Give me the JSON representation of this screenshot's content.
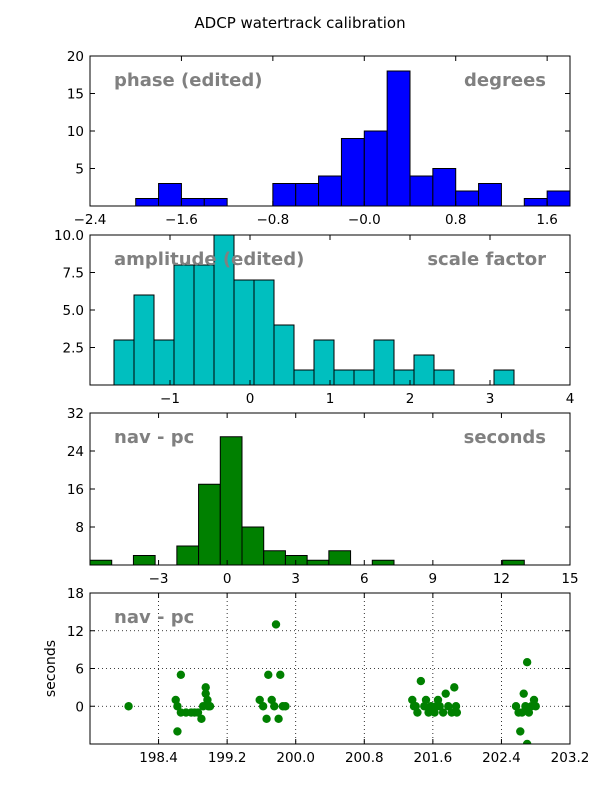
{
  "figure": {
    "title": "ADCP watertrack calibration"
  },
  "chart_data": [
    {
      "type": "bar",
      "subtype": "histogram",
      "color": "#0000ff",
      "bin_width": 0.2,
      "bins_start": [
        -2.0,
        -1.8,
        -1.6,
        -1.4,
        -1.2,
        -1.0,
        -0.8,
        -0.6,
        -0.4,
        -0.2,
        0.0,
        0.2,
        0.4,
        0.6,
        0.8,
        1.0,
        1.2,
        1.4,
        1.6
      ],
      "values": [
        1,
        3,
        1,
        1,
        0,
        0,
        3,
        3,
        4,
        9,
        10,
        18,
        4,
        5,
        2,
        3,
        0,
        1,
        2
      ],
      "xlim": [
        -2.4,
        1.8
      ],
      "ylim": [
        0,
        20
      ],
      "xticks": [
        -2.4,
        -1.6,
        -0.8,
        0.0,
        0.8,
        1.6
      ],
      "xtick_labels": [
        "−2.4",
        "−1.6",
        "−0.8",
        "−0.0",
        "0.8",
        "1.6"
      ],
      "yticks": [
        5,
        10,
        15,
        20
      ],
      "ytick_labels": [
        "5",
        "10",
        "15",
        "20"
      ],
      "annotation_left": "phase (edited)",
      "annotation_right": "degrees",
      "grid": false
    },
    {
      "type": "bar",
      "subtype": "histogram",
      "color": "#00bfbf",
      "bin_width": 0.25,
      "bins_start": [
        -1.7,
        -1.45,
        -1.2,
        -0.95,
        -0.7,
        -0.45,
        -0.2,
        0.05,
        0.3,
        0.55,
        0.8,
        1.05,
        1.3,
        1.55,
        1.8,
        2.05,
        2.3,
        2.55,
        2.8,
        3.05
      ],
      "values": [
        3,
        6,
        3,
        8,
        8,
        10,
        7,
        7,
        4,
        1,
        3,
        1,
        1,
        3,
        1,
        2,
        1,
        0,
        0,
        1
      ],
      "xlim": [
        -2,
        4
      ],
      "ylim": [
        0,
        10
      ],
      "xticks": [
        -1,
        0,
        1,
        2,
        3,
        4
      ],
      "xtick_labels": [
        "−1",
        "0",
        "1",
        "2",
        "3",
        "4"
      ],
      "yticks": [
        2.5,
        5,
        7.5,
        10
      ],
      "ytick_labels": [
        "2.5",
        "5.0",
        "7.5",
        "10.0"
      ],
      "annotation_left": "amplitude (edited)",
      "annotation_right": "scale factor",
      "grid": false
    },
    {
      "type": "bar",
      "subtype": "histogram",
      "color": "#008000",
      "bin_width": 0.95,
      "bins_start": [
        -6.0,
        -5.05,
        -4.1,
        -3.15,
        -2.2,
        -1.25,
        -0.3,
        0.65,
        1.6,
        2.55,
        3.5,
        4.45,
        5.4,
        6.35,
        7.3,
        8.25,
        9.2,
        10.15,
        11.1,
        12.05
      ],
      "values": [
        1,
        0,
        2,
        0,
        4,
        17,
        27,
        8,
        3,
        2,
        1,
        3,
        0,
        1,
        0,
        0,
        0,
        0,
        0,
        1
      ],
      "xlim": [
        -6,
        15
      ],
      "ylim": [
        0,
        32
      ],
      "xticks": [
        -3,
        0,
        3,
        6,
        9,
        12,
        15
      ],
      "xtick_labels": [
        "−3",
        "0",
        "3",
        "6",
        "9",
        "12",
        "15"
      ],
      "yticks": [
        8,
        16,
        24,
        32
      ],
      "ytick_labels": [
        "8",
        "16",
        "24",
        "32"
      ],
      "annotation_left": "nav - pc",
      "annotation_right": "seconds",
      "grid": false
    },
    {
      "type": "scatter",
      "color": "#008000",
      "xlim": [
        197.6,
        203.2
      ],
      "ylim": [
        -6,
        18
      ],
      "xticks": [
        198.4,
        199.2,
        200.0,
        200.8,
        201.6,
        202.4,
        203.2
      ],
      "xtick_labels": [
        "198.4",
        "199.2",
        "200.0",
        "200.8",
        "201.6",
        "202.4",
        "203.2"
      ],
      "yticks": [
        0,
        6,
        12,
        18
      ],
      "ytick_labels": [
        "0",
        "6",
        "12",
        "18"
      ],
      "ylabel": "seconds",
      "annotation_left": "nav - pc",
      "grid": true,
      "points": [
        [
          198.05,
          0
        ],
        [
          198.6,
          1
        ],
        [
          198.62,
          -4
        ],
        [
          198.62,
          0
        ],
        [
          198.66,
          5
        ],
        [
          198.66,
          -1
        ],
        [
          198.72,
          -1
        ],
        [
          198.78,
          -1
        ],
        [
          198.82,
          -1
        ],
        [
          198.86,
          -1
        ],
        [
          198.9,
          -2
        ],
        [
          198.92,
          0
        ],
        [
          198.95,
          3
        ],
        [
          198.95,
          2
        ],
        [
          198.97,
          1
        ],
        [
          198.98,
          0
        ],
        [
          199.0,
          0
        ],
        [
          199.58,
          1
        ],
        [
          199.62,
          0
        ],
        [
          199.66,
          -2
        ],
        [
          199.68,
          5
        ],
        [
          199.72,
          1
        ],
        [
          199.75,
          0
        ],
        [
          199.77,
          13
        ],
        [
          199.8,
          -2
        ],
        [
          199.82,
          5
        ],
        [
          199.85,
          0
        ],
        [
          199.88,
          0
        ],
        [
          201.36,
          1
        ],
        [
          201.38,
          0
        ],
        [
          201.4,
          0
        ],
        [
          201.42,
          -1
        ],
        [
          201.46,
          4
        ],
        [
          201.5,
          0
        ],
        [
          201.52,
          1
        ],
        [
          201.55,
          -1
        ],
        [
          201.58,
          0
        ],
        [
          201.62,
          -1
        ],
        [
          201.64,
          0
        ],
        [
          201.66,
          1
        ],
        [
          201.68,
          0
        ],
        [
          201.72,
          -1
        ],
        [
          201.75,
          2
        ],
        [
          201.78,
          0
        ],
        [
          201.82,
          -1
        ],
        [
          201.85,
          3
        ],
        [
          201.87,
          0
        ],
        [
          201.88,
          -1
        ],
        [
          202.57,
          0
        ],
        [
          202.6,
          -1
        ],
        [
          202.62,
          -4
        ],
        [
          202.64,
          -1
        ],
        [
          202.66,
          2
        ],
        [
          202.68,
          0
        ],
        [
          202.7,
          -6
        ],
        [
          202.7,
          7
        ],
        [
          202.72,
          -1
        ],
        [
          202.75,
          0
        ],
        [
          202.78,
          1
        ],
        [
          202.8,
          0
        ]
      ]
    }
  ]
}
